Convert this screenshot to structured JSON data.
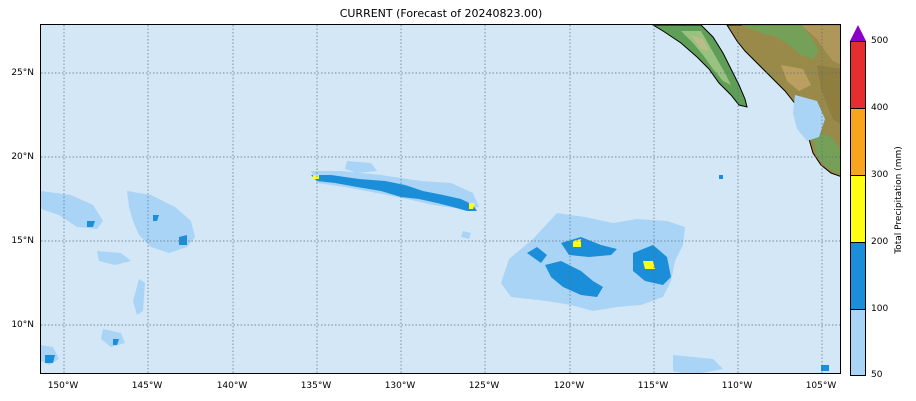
{
  "title": "CURRENT (Forecast of 20240823.00)",
  "map": {
    "projection": "cylindrical",
    "lon_range": [
      -151.5,
      -103.5
    ],
    "lat_range": [
      7,
      28
    ],
    "x_ticks": [
      "150°W",
      "145°W",
      "140°W",
      "135°W",
      "130°W",
      "125°W",
      "120°W",
      "115°W",
      "110°W",
      "105°W"
    ],
    "y_ticks": [
      "10°N",
      "15°N",
      "20°N",
      "25°N"
    ],
    "gridlines": true,
    "ocean_color": "#d3e7f6",
    "land_features": "Baja California peninsula and west coast of mainland Mexico (top-right)"
  },
  "colorbar": {
    "label": "Total Precipitation (mm)",
    "ticks": [
      "50",
      "100",
      "200",
      "300",
      "400",
      "500"
    ],
    "colors": [
      "#a9d4f6",
      "#1a8ed8",
      "#ffff14",
      "#f8a51d",
      "#e62e2e",
      "#8a00c8"
    ],
    "extend": "max"
  }
}
